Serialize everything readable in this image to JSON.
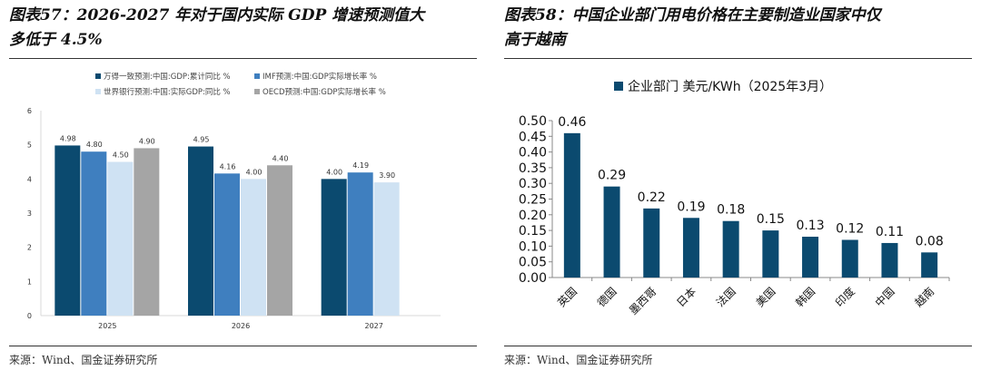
{
  "left": {
    "title_line1": "图表57：2026-2027 年对于国内实际 GDP 增速预测值大",
    "title_line2": "多低于 4.5%",
    "source": "来源：Wind、国金证券研究所"
  },
  "right": {
    "title_line1": "图表58：中国企业部门用电价格在主要制造业国家中仅",
    "title_line2": "高于越南",
    "source": "来源：Wind、国金证券研究所"
  },
  "chart_data": [
    {
      "type": "bar",
      "categories": [
        "2025",
        "2026",
        "2027"
      ],
      "ylim": [
        0,
        6
      ],
      "yticks": [
        0,
        1,
        2,
        3,
        4,
        5,
        6
      ],
      "grid": false,
      "legend": "top",
      "series": [
        {
          "name": "万得一致预测:中国:GDP:累计同比 %",
          "color": "#0b4a6f",
          "values": [
            4.98,
            4.95,
            4.0
          ]
        },
        {
          "name": "IMF预测:中国:GDP实际增长率 %",
          "color": "#3f7fbf",
          "values": [
            4.8,
            4.16,
            4.19
          ]
        },
        {
          "name": "世界银行预测:中国:实际GDP:同比 %",
          "color": "#cfe2f3",
          "values": [
            4.5,
            4.0,
            3.9
          ]
        },
        {
          "name": "OECD预测:中国:GDP实际增长率 %",
          "color": "#a5a5a5",
          "values": [
            4.9,
            4.4,
            null
          ]
        }
      ]
    },
    {
      "type": "bar",
      "categories": [
        "英国",
        "德国",
        "墨西哥",
        "日本",
        "法国",
        "美国",
        "韩国",
        "印度",
        "中国",
        "越南"
      ],
      "ylim": [
        0,
        0.5
      ],
      "yticks": [
        0,
        0.05,
        0.1,
        0.15,
        0.2,
        0.25,
        0.3,
        0.35,
        0.4,
        0.45,
        0.5
      ],
      "grid": false,
      "legend": "top",
      "series": [
        {
          "name": "企业部门 美元/KWh（2025年3月）",
          "color": "#0b4a6f",
          "values": [
            0.46,
            0.29,
            0.22,
            0.19,
            0.18,
            0.15,
            0.13,
            0.12,
            0.11,
            0.08
          ]
        }
      ]
    }
  ]
}
